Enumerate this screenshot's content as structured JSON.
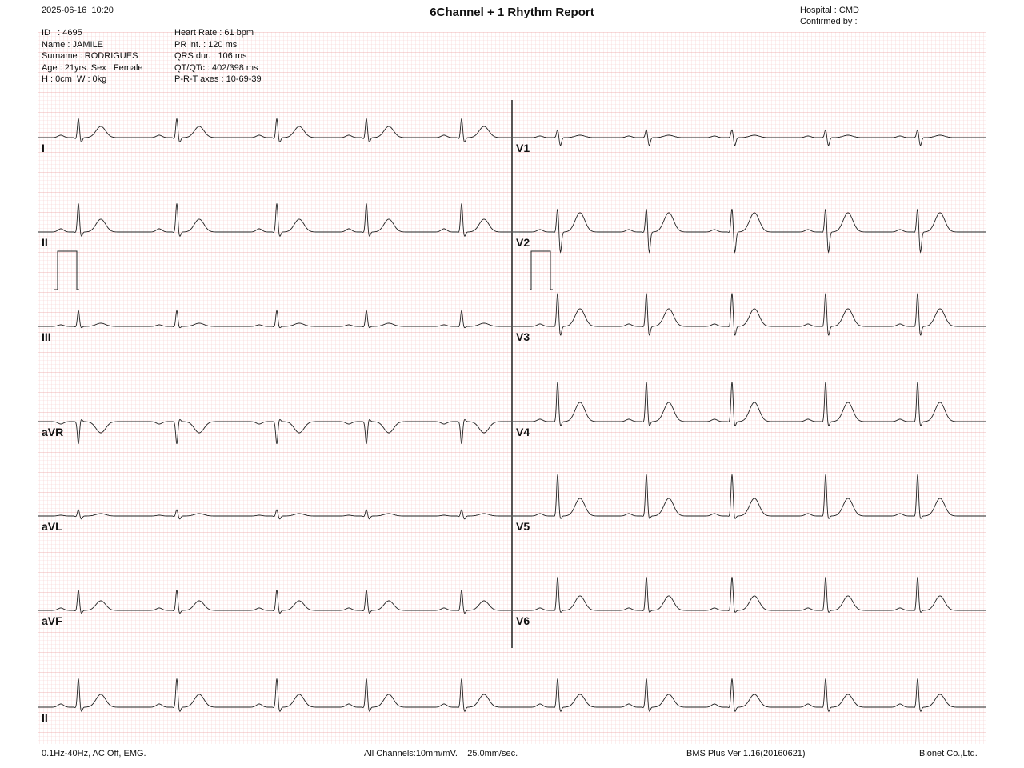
{
  "header": {
    "datetime": "2025-06-16  10:20",
    "title": "6Channel + 1 Rhythm Report",
    "hospital": "Hospital : CMD",
    "confirmed": "Confirmed by :"
  },
  "patient": [
    "ID   : 4695",
    "Name : JAMILE",
    "Surname : RODRIGUES",
    "Age : 21yrs. Sex : Female",
    "H : 0cm  W : 0kg"
  ],
  "measurements": [
    "Heart Rate : 61 bpm",
    "PR int. : 120 ms",
    "QRS dur. : 106 ms",
    "QT/QTc : 402/398 ms",
    "P-R-T axes : 10-69-39"
  ],
  "left_leads": [
    "I",
    "II",
    "III",
    "aVR",
    "aVL",
    "aVF"
  ],
  "right_leads": [
    "V1",
    "V2",
    "V3",
    "V4",
    "V5",
    "V6"
  ],
  "rhythm_lead": "II",
  "footer": {
    "filter": "0.1Hz-40Hz, AC Off, EMG.",
    "settings": "All Channels:10mm/mV.    25.0mm/sec.",
    "version": "BMS Plus Ver 1.16(20160621)",
    "company": "Bionet Co.,Ltd."
  }
}
